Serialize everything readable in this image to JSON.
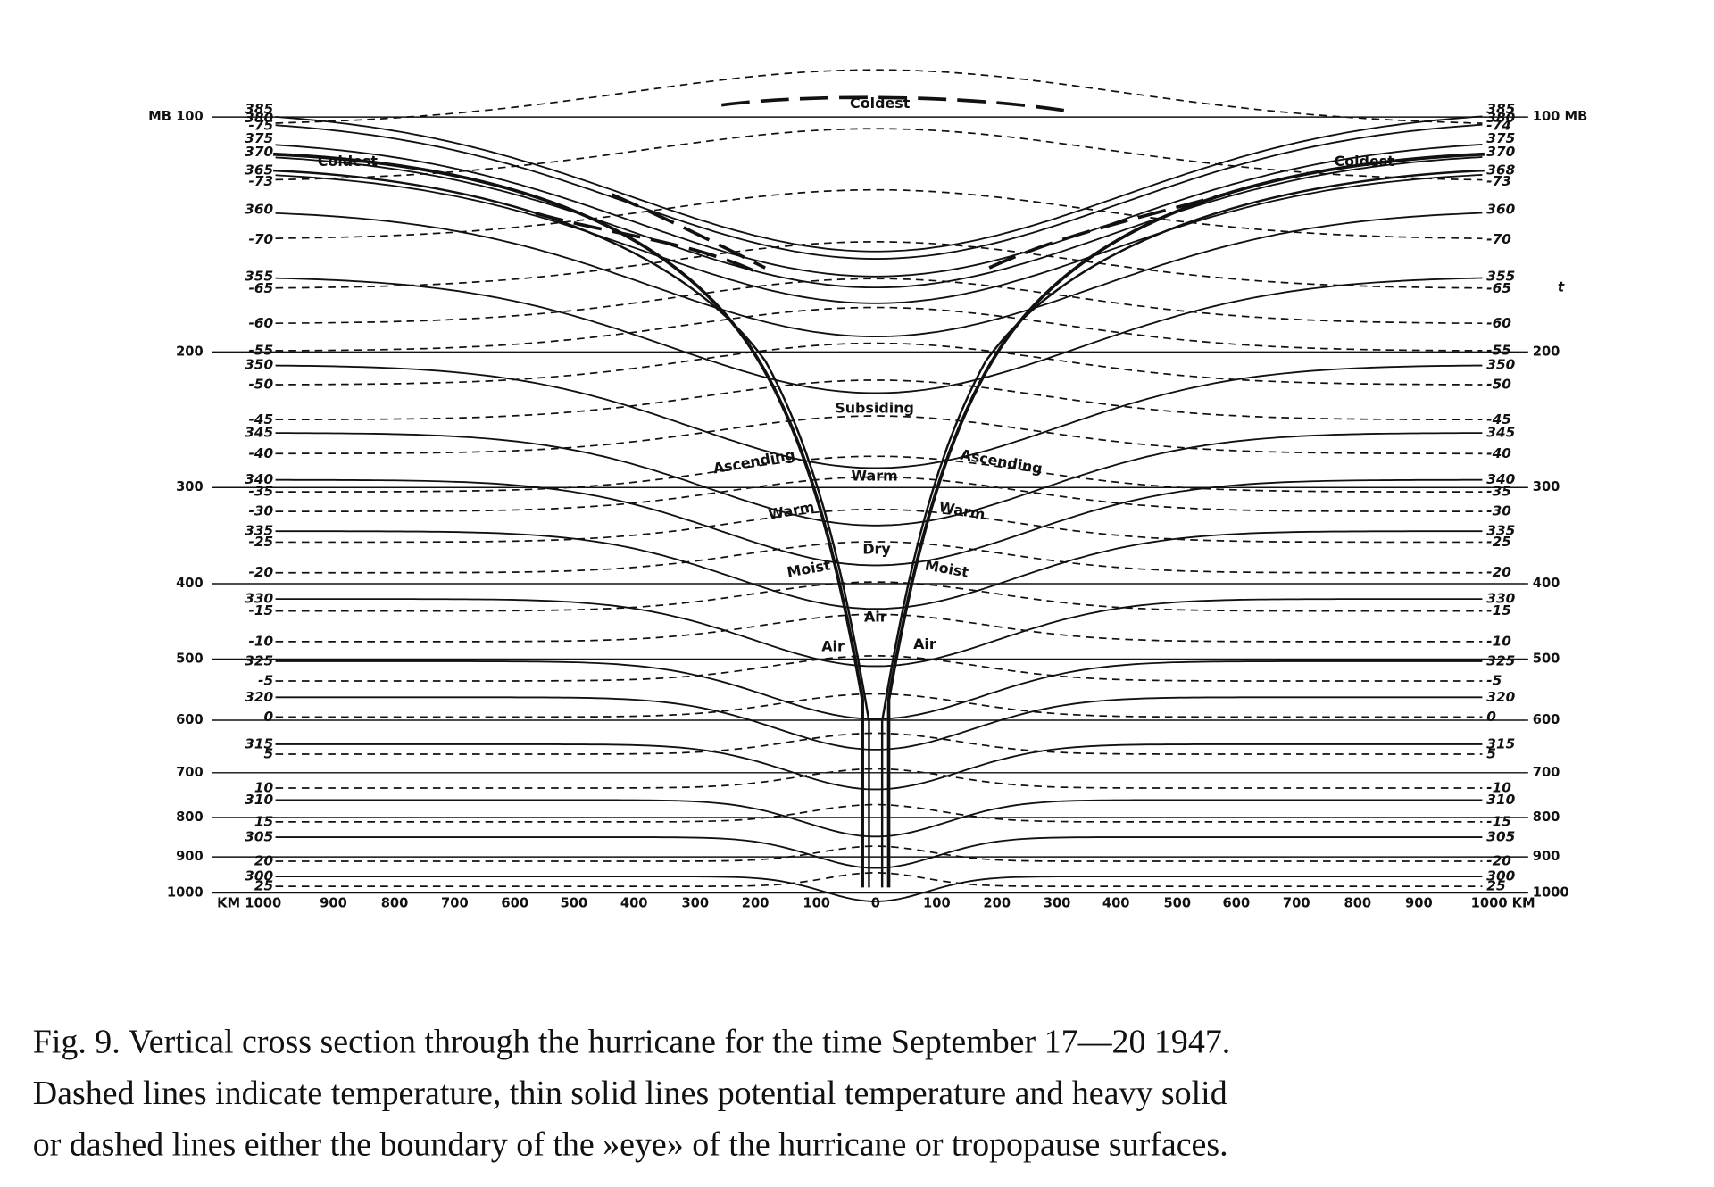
{
  "figure": {
    "left_axis": [
      "MB 100",
      "200",
      "300",
      "400",
      "500",
      "600",
      "700",
      "800",
      "900",
      "1000"
    ],
    "right_axis": [
      "100 MB",
      "200",
      "300",
      "400",
      "500",
      "600",
      "700",
      "800",
      "900",
      "1000"
    ],
    "distance_axis": [
      "KM 1000",
      "900",
      "800",
      "700",
      "600",
      "500",
      "400",
      "300",
      "200",
      "100",
      "0",
      "100",
      "200",
      "300",
      "400",
      "500",
      "600",
      "700",
      "800",
      "900",
      "1000 KM"
    ],
    "left_isoline_labels": [
      "385",
      "380",
      "-75",
      "375",
      "370",
      "365",
      "-73",
      "360",
      "-70",
      "355",
      "-65",
      "-60",
      "-55",
      "350",
      "-50",
      "-45",
      "345",
      "-40",
      "340",
      "-35",
      "-30",
      "335",
      "-25",
      "-20",
      "330",
      "-15",
      "-10",
      "325",
      "-5",
      "320",
      "0",
      "315",
      "5",
      "10",
      "310",
      "15",
      "305",
      "20",
      "300",
      "25"
    ],
    "right_isoline_labels": [
      "385",
      "380",
      "-74",
      "375",
      "370",
      "368",
      "-73",
      "360",
      "-70",
      "355",
      "-65",
      "-60",
      "-55",
      "350",
      "-50",
      "-45",
      "345",
      "-40",
      "340",
      "-35",
      "-30",
      "335",
      "-25",
      "-20",
      "330",
      "-15",
      "-10",
      "325",
      "-5",
      "320",
      "0",
      "315",
      "5",
      "-10",
      "310",
      "-15",
      "305",
      "-20",
      "300",
      "25"
    ],
    "right_marker": "t",
    "regions": [
      "Coldest",
      "Coldest",
      "Coldest",
      "Subsiding",
      "Ascending",
      "Ascending",
      "Warm",
      "Warm",
      "Warm",
      "Dry",
      "Moist",
      "Moist",
      "Air",
      "Air",
      "Air"
    ]
  },
  "caption": [
    "Fig. 9. Vertical cross section through the hurricane for the time September 17—20 1947.",
    "Dashed lines indicate temperature, thin solid lines potential temperature and heavy solid",
    "or dashed lines either the boundary of the »eye» of the hurricane or tropopause surfaces."
  ]
}
